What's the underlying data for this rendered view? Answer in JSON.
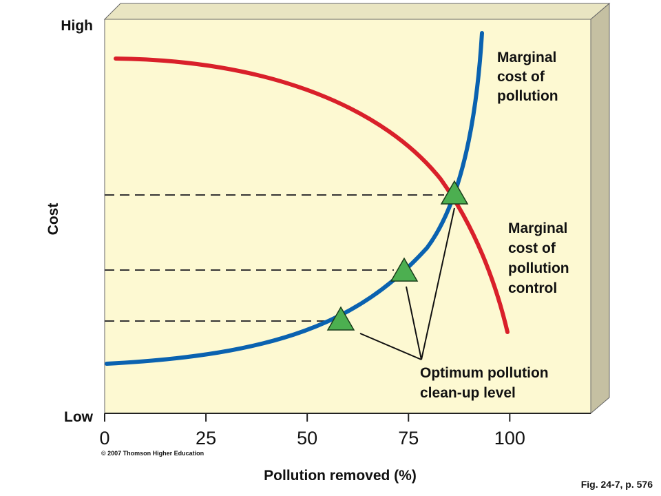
{
  "chart_data": {
    "type": "line",
    "y_label": "Cost",
    "y_high_label": "High",
    "y_low_label": "Low",
    "x_label": "Pollution removed (%)",
    "xlim": [
      0,
      120
    ],
    "xticks": [
      0,
      25,
      50,
      75,
      100
    ],
    "annotations": {
      "marginal_cost_pollution": [
        "Marginal",
        "cost of",
        "pollution"
      ],
      "marginal_cost_control": [
        "Marginal",
        "cost of",
        "pollution",
        "control"
      ],
      "optimum": [
        "Optimum pollution",
        "clean-up level"
      ]
    },
    "copyright": "© 2007 Thomson Higher Education",
    "figure_ref": "Fig. 24-7, p. 576"
  }
}
